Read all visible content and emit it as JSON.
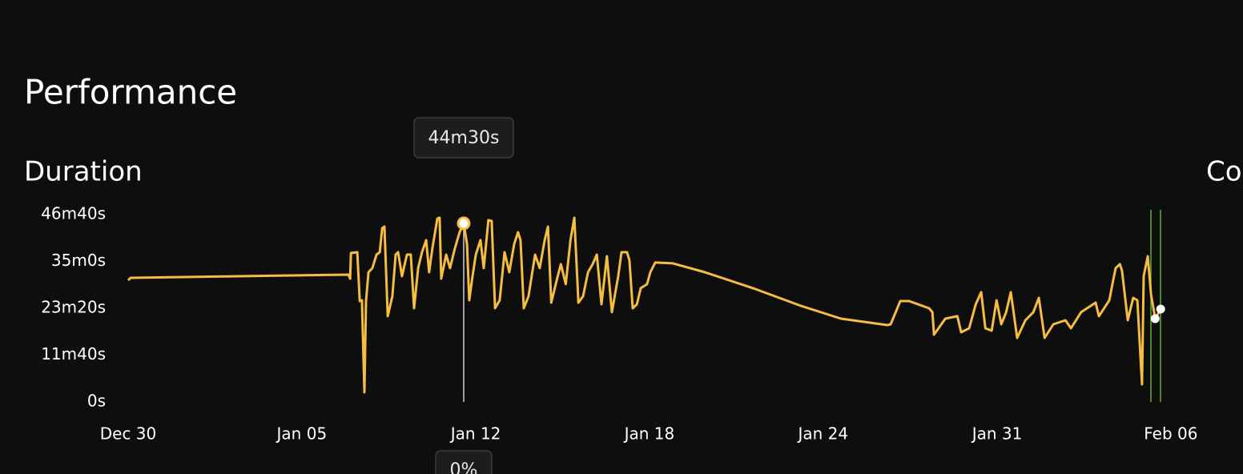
{
  "heading": "Performance",
  "next_panel_title": "Co",
  "chart_data": {
    "type": "line",
    "title": "Duration",
    "xlim": [
      0.5,
      38.8
    ],
    "xticks": [
      {
        "value": 0.5,
        "label": "Dec 30"
      },
      {
        "value": 6.83,
        "label": "Jan 05"
      },
      {
        "value": 13.17,
        "label": "Jan 12"
      },
      {
        "value": 19.5,
        "label": "Jan 18"
      },
      {
        "value": 25.83,
        "label": "Jan 24"
      },
      {
        "value": 32.17,
        "label": "Jan 31"
      },
      {
        "value": 38.5,
        "label": "Feb 06"
      }
    ],
    "ylim": [
      0,
      2800
    ],
    "yticks": [
      {
        "value": 0,
        "label": "0s"
      },
      {
        "value": 700,
        "label": "11m40s"
      },
      {
        "value": 1400,
        "label": "23m20s"
      },
      {
        "value": 2100,
        "label": "35m0s"
      },
      {
        "value": 2800,
        "label": "46m40s"
      }
    ],
    "series": [
      {
        "color": "#f5bd41",
        "x": [
          0.5,
          0.59,
          8.53,
          8.59,
          8.62,
          8.85,
          8.94,
          9.02,
          9.11,
          9.17,
          9.26,
          9.4,
          9.55,
          9.67,
          9.76,
          9.84,
          9.96,
          10.13,
          10.25,
          10.34,
          10.48,
          10.66,
          10.8,
          10.92,
          11.07,
          11.21,
          11.36,
          11.47,
          11.59,
          11.77,
          11.85,
          11.91,
          12.09,
          12.23,
          12.41,
          12.58,
          12.73,
          12.85,
          12.93,
          13.05,
          13.17,
          13.34,
          13.46,
          13.63,
          13.75,
          13.87,
          14.04,
          14.22,
          14.39,
          14.57,
          14.71,
          14.8,
          14.92,
          15.09,
          15.33,
          15.5,
          15.68,
          15.8,
          15.92,
          16.12,
          16.27,
          16.45,
          16.62,
          16.76,
          16.91,
          17.08,
          17.26,
          17.43,
          17.58,
          17.75,
          17.95,
          18.13,
          18.36,
          18.48,
          18.68,
          18.77,
          18.89,
          19.04,
          19.18,
          19.41,
          19.53,
          19.71,
          20.35,
          21.52,
          23.27,
          25.02,
          26.48,
          28.17,
          28.29,
          28.64,
          28.96,
          29.69,
          29.81,
          29.87,
          30.28,
          30.72,
          30.86,
          31.15,
          31.39,
          31.59,
          31.74,
          31.97,
          32.15,
          32.32,
          32.5,
          32.67,
          32.9,
          33.2,
          33.49,
          33.69,
          33.9,
          34.22,
          34.66,
          34.86,
          35.23,
          35.76,
          35.88,
          36.26,
          36.4,
          36.49,
          36.64,
          36.72,
          36.93,
          37.13,
          37.28,
          37.45,
          37.51,
          37.66,
          37.78,
          37.93,
          38.13
        ],
        "values": [
          1819,
          1855,
          1903,
          1843,
          2226,
          2238,
          1508,
          1520,
          144,
          1508,
          1939,
          1999,
          2202,
          2238,
          2597,
          2621,
          1281,
          1580,
          2202,
          2238,
          1879,
          2202,
          2202,
          1400,
          1999,
          2238,
          2418,
          1939,
          2298,
          2741,
          2753,
          1843,
          2202,
          1999,
          2298,
          2537,
          2670,
          2358,
          1520,
          1879,
          2202,
          2418,
          1999,
          2717,
          2705,
          1400,
          1520,
          2238,
          1939,
          2358,
          2537,
          2418,
          1400,
          1580,
          2202,
          1999,
          2418,
          2621,
          1484,
          1819,
          2059,
          1760,
          2418,
          2753,
          1484,
          1580,
          1939,
          2059,
          2202,
          1460,
          2178,
          1341,
          1879,
          2238,
          2238,
          2119,
          1400,
          1460,
          1700,
          1760,
          1939,
          2083,
          2071,
          1939,
          1700,
          1436,
          1245,
          1149,
          1161,
          1508,
          1508,
          1400,
          1341,
          1005,
          1245,
          1281,
          1041,
          1101,
          1460,
          1640,
          1101,
          1065,
          1520,
          1161,
          1341,
          1640,
          957,
          1221,
          1341,
          1556,
          957,
          1161,
          1221,
          1101,
          1341,
          1484,
          1281,
          1520,
          1819,
          1999,
          2059,
          1963,
          1221,
          1556,
          1520,
          263,
          1879,
          2178,
          1604,
          1245,
          1388
        ]
      }
    ],
    "tooltip": {
      "x": 12.73,
      "value": 2670,
      "label": "44m30s"
    },
    "bottom_tooltip": "0%"
  }
}
